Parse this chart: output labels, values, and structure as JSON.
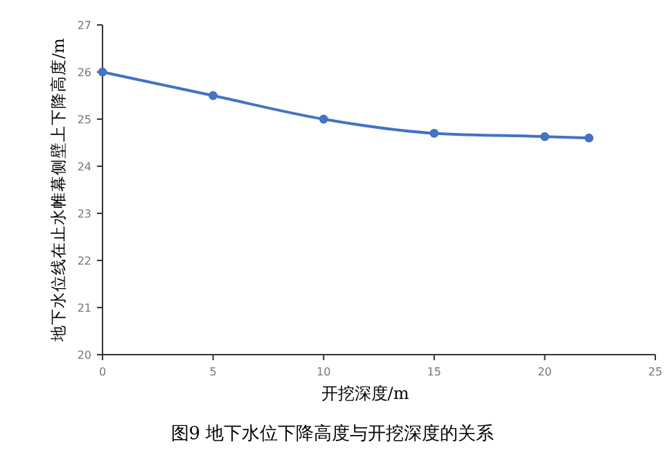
{
  "chart_data": {
    "type": "line",
    "title": "图9 地下水位下降高度与开挖深度的关系",
    "xlabel": "开挖深度/m",
    "ylabel": "地下水位线在止水帷幕侧壁上下降高度/m",
    "x": [
      0,
      5,
      10,
      15,
      20,
      22
    ],
    "series": [
      {
        "color": "#4472c4",
        "values": [
          26,
          25.5,
          25,
          24.7,
          24.63,
          24.6
        ]
      }
    ],
    "xlim": [
      0,
      25
    ],
    "xticks": [
      0,
      5,
      10,
      15,
      20,
      25
    ],
    "ylim": [
      20,
      27
    ],
    "yticks": [
      20,
      21,
      22,
      23,
      24,
      25,
      26,
      27
    ],
    "grid": false,
    "marker": "circle",
    "line_style": "solid"
  }
}
